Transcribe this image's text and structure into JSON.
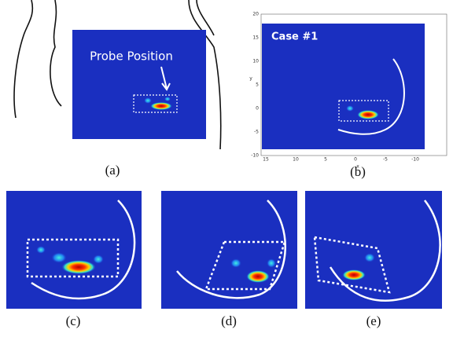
{
  "panels": [
    {
      "label": "(a)",
      "annotation": "Probe Position"
    },
    {
      "label": "(b)",
      "annotation": "Case #1",
      "x_axis_label": "x",
      "y_axis_label": "y",
      "x_ticks": [
        "15",
        "10",
        "5",
        "0",
        "-5",
        "-10"
      ],
      "y_ticks": [
        "20",
        "15",
        "10",
        "5",
        "0",
        "-5",
        "-10"
      ]
    },
    {
      "label": "(c)"
    },
    {
      "label": "(d)"
    },
    {
      "label": "(e)"
    }
  ]
}
